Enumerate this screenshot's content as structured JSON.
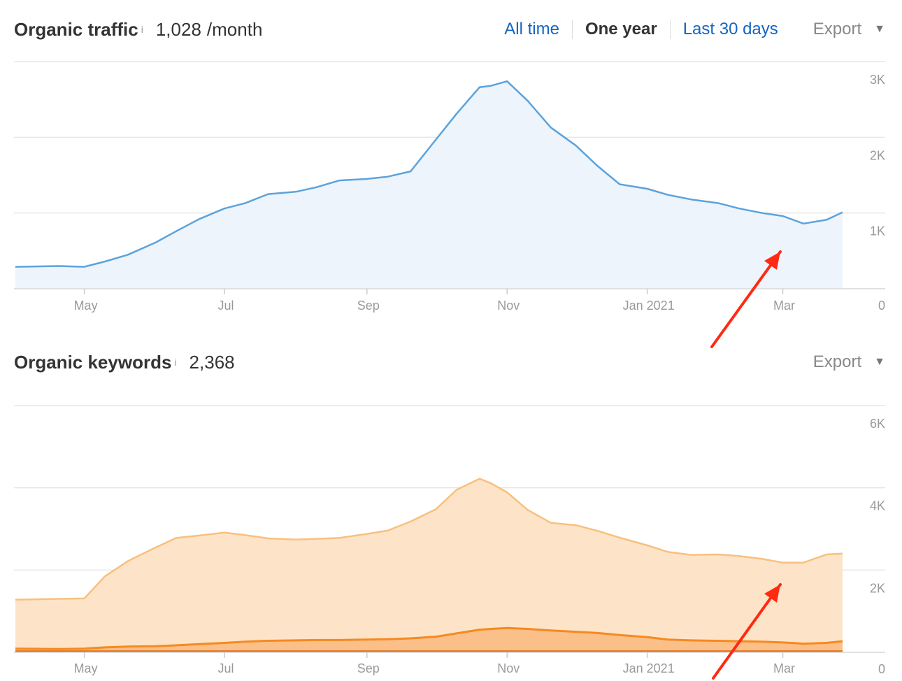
{
  "traffic": {
    "title": "Organic traffic",
    "info": "i",
    "value": "1,028",
    "unit": "/month",
    "ranges": [
      "All time",
      "One year",
      "Last 30 days"
    ],
    "active_range": "One year",
    "export_label": "Export",
    "caret": "▼"
  },
  "keywords": {
    "title": "Organic keywords",
    "info": "i",
    "value": "2,368",
    "export_label": "Export",
    "caret": "▼"
  },
  "colors": {
    "traffic_line": "#5ba3dd",
    "traffic_fill": "#eef4fb",
    "keywords_light_line": "#f8c07e",
    "keywords_light_fill": "#fde4c8",
    "keywords_mid_line": "#f58a1f",
    "keywords_mid_fill": "#fbbf8a",
    "keywords_dark_line": "#e06a10",
    "arrow": "#ff2a12",
    "grid": "#e6e6e6"
  },
  "chart_data": [
    {
      "type": "area",
      "x_ticks": [
        "May",
        "Jul",
        "Sep",
        "Nov",
        "Jan 2021",
        "Mar"
      ],
      "ylim": [
        0,
        3000
      ],
      "y_ticks": [
        0,
        1000,
        2000,
        3000
      ],
      "y_tick_labels": [
        "0",
        "1K",
        "2K",
        "3K"
      ],
      "x": [
        "2020-04-01",
        "2020-04-20",
        "2020-05-01",
        "2020-05-10",
        "2020-05-20",
        "2020-06-01",
        "2020-06-10",
        "2020-06-20",
        "2020-07-01",
        "2020-07-10",
        "2020-07-20",
        "2020-08-01",
        "2020-08-10",
        "2020-08-20",
        "2020-09-01",
        "2020-09-10",
        "2020-09-20",
        "2020-10-01",
        "2020-10-10",
        "2020-10-20",
        "2020-10-25",
        "2020-11-01",
        "2020-11-10",
        "2020-11-20",
        "2020-12-01",
        "2020-12-10",
        "2020-12-20",
        "2021-01-01",
        "2021-01-10",
        "2021-01-20",
        "2021-02-01",
        "2021-02-10",
        "2021-02-20",
        "2021-03-01",
        "2021-03-10",
        "2021-03-20",
        "2021-03-27"
      ],
      "series": [
        {
          "values": [
            290,
            300,
            290,
            360,
            450,
            610,
            760,
            920,
            1060,
            1130,
            1250,
            1280,
            1340,
            1430,
            1450,
            1480,
            1550,
            1970,
            2310,
            2660,
            2680,
            2740,
            2480,
            2130,
            1890,
            1630,
            1380,
            1320,
            1240,
            1180,
            1130,
            1060,
            1000,
            960,
            860,
            910,
            1010
          ]
        }
      ]
    },
    {
      "type": "area",
      "x_ticks": [
        "May",
        "Jul",
        "Sep",
        "Nov",
        "Jan 2021",
        "Mar"
      ],
      "ylim": [
        0,
        6000
      ],
      "y_ticks": [
        0,
        2000,
        4000,
        6000
      ],
      "y_tick_labels": [
        "0",
        "2K",
        "4K",
        "6K"
      ],
      "x": [
        "2020-04-01",
        "2020-04-20",
        "2020-05-01",
        "2020-05-10",
        "2020-05-20",
        "2020-06-01",
        "2020-06-10",
        "2020-06-20",
        "2020-07-01",
        "2020-07-10",
        "2020-07-20",
        "2020-08-01",
        "2020-08-10",
        "2020-08-20",
        "2020-09-01",
        "2020-09-10",
        "2020-09-20",
        "2020-10-01",
        "2020-10-10",
        "2020-10-20",
        "2020-10-25",
        "2020-11-01",
        "2020-11-10",
        "2020-11-20",
        "2020-12-01",
        "2020-12-10",
        "2020-12-20",
        "2021-01-01",
        "2021-01-10",
        "2021-01-20",
        "2021-02-01",
        "2021-02-10",
        "2021-02-20",
        "2021-03-01",
        "2021-03-10",
        "2021-03-20",
        "2021-03-27"
      ],
      "series": [
        {
          "values": [
            1280,
            1300,
            1310,
            1850,
            2220,
            2550,
            2780,
            2840,
            2910,
            2850,
            2770,
            2740,
            2760,
            2780,
            2880,
            2960,
            3180,
            3480,
            3950,
            4220,
            4110,
            3890,
            3460,
            3150,
            3090,
            2960,
            2790,
            2600,
            2440,
            2370,
            2380,
            2340,
            2270,
            2180,
            2180,
            2380,
            2400
          ]
        },
        {
          "values": [
            90,
            80,
            90,
            120,
            140,
            150,
            170,
            200,
            230,
            260,
            280,
            290,
            300,
            300,
            310,
            320,
            340,
            380,
            460,
            550,
            570,
            590,
            570,
            530,
            500,
            470,
            420,
            370,
            310,
            290,
            280,
            270,
            260,
            240,
            210,
            230,
            270
          ]
        },
        {
          "values": [
            30,
            30,
            30,
            30,
            30,
            30,
            30,
            30,
            30,
            30,
            30,
            30,
            30,
            30,
            30,
            30,
            30,
            30,
            30,
            30,
            30,
            30,
            30,
            30,
            30,
            30,
            30,
            30,
            30,
            30,
            30,
            30,
            30,
            30,
            30,
            30,
            30
          ]
        }
      ]
    }
  ]
}
